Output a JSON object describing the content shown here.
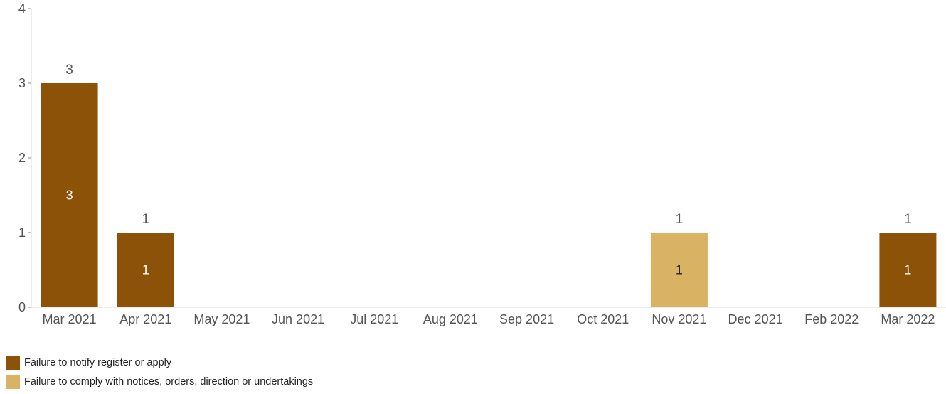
{
  "chart_data": {
    "type": "bar",
    "stacked": true,
    "categories": [
      "Mar 2021",
      "Apr 2021",
      "May 2021",
      "Jun 2021",
      "Jul 2021",
      "Aug 2021",
      "Sep 2021",
      "Oct 2021",
      "Nov 2021",
      "Dec 2021",
      "Feb 2022",
      "Mar 2022"
    ],
    "series": [
      {
        "name": "Failure to notify register or apply",
        "color": "#8b5208",
        "values": [
          3,
          1,
          0,
          0,
          0,
          0,
          0,
          0,
          0,
          0,
          0,
          1
        ]
      },
      {
        "name": "Failure to comply with notices, orders, direction or undertakings",
        "color": "#dab263",
        "values": [
          0,
          0,
          0,
          0,
          0,
          0,
          0,
          0,
          1,
          0,
          0,
          0
        ]
      }
    ],
    "totals": [
      3,
      1,
      null,
      null,
      null,
      null,
      null,
      null,
      1,
      null,
      null,
      1
    ],
    "ylim": [
      0,
      4
    ],
    "yticks": [
      0,
      1,
      2,
      3,
      4
    ],
    "title": "",
    "xlabel": "",
    "ylabel": "",
    "grid": false,
    "legend_position": "bottom-left"
  }
}
